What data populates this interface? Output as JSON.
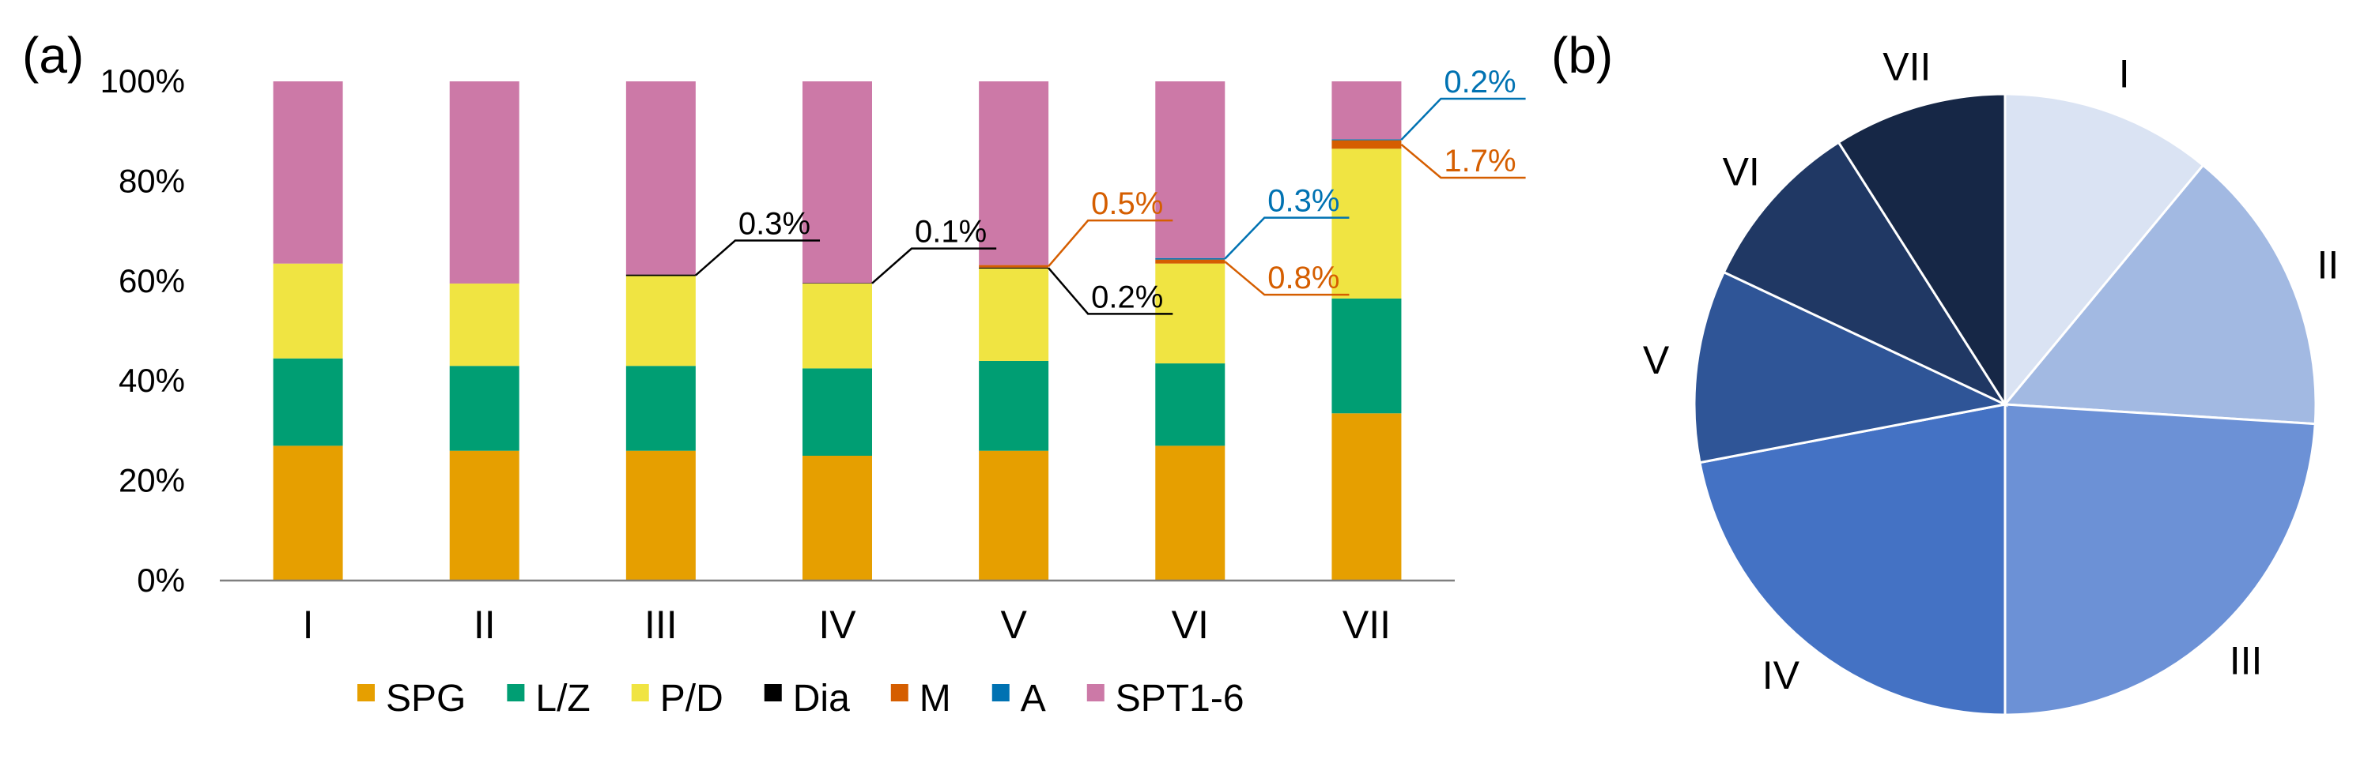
{
  "chart_data": [
    {
      "panel": "(a)",
      "type": "bar",
      "stacked": true,
      "categories": [
        "I",
        "II",
        "III",
        "IV",
        "V",
        "VI",
        "VII"
      ],
      "ylim": [
        0,
        100
      ],
      "yticks": [
        "0%",
        "20%",
        "40%",
        "60%",
        "80%",
        "100%"
      ],
      "legend_position": "bottom",
      "grid": false,
      "series": [
        {
          "name": "SPG",
          "color": "#E69F00",
          "values": [
            27,
            26,
            26,
            25,
            26,
            27,
            33.5
          ]
        },
        {
          "name": "L/Z",
          "color": "#009E73",
          "values": [
            17.5,
            17,
            17,
            17.5,
            18,
            16.5,
            23
          ]
        },
        {
          "name": "P/D",
          "color": "#F0E442",
          "values": [
            19,
            16.5,
            18,
            17,
            18.5,
            20,
            30
          ]
        },
        {
          "name": "Dia",
          "color": "#000000",
          "values": [
            0,
            0,
            0.3,
            0.1,
            0.2,
            0,
            0
          ]
        },
        {
          "name": "M",
          "color": "#D55E00",
          "values": [
            0,
            0,
            0,
            0,
            0.5,
            0.8,
            1.7
          ]
        },
        {
          "name": "A",
          "color": "#0072B2",
          "values": [
            0,
            0,
            0,
            0,
            0,
            0.3,
            0.2
          ]
        },
        {
          "name": "SPT1-6",
          "color": "#CC79A7",
          "values": [
            36.5,
            40.5,
            38.7,
            40.4,
            36.8,
            35.4,
            11.6
          ]
        }
      ],
      "annotations": [
        {
          "category": "III",
          "series": "Dia",
          "text": "0.3%",
          "color": "#000000"
        },
        {
          "category": "IV",
          "series": "Dia",
          "text": "0.1%",
          "color": "#000000"
        },
        {
          "category": "V",
          "series": "M",
          "text": "0.5%",
          "color": "#D55E00"
        },
        {
          "category": "V",
          "series": "Dia",
          "text": "0.2%",
          "color": "#000000"
        },
        {
          "category": "VI",
          "series": "A",
          "text": "0.3%",
          "color": "#0072B2"
        },
        {
          "category": "VI",
          "series": "M",
          "text": "0.8%",
          "color": "#D55E00"
        },
        {
          "category": "VII",
          "series": "A",
          "text": "0.2%",
          "color": "#0072B2"
        },
        {
          "category": "VII",
          "series": "M",
          "text": "1.7%",
          "color": "#D55E00"
        }
      ]
    },
    {
      "panel": "(b)",
      "type": "pie",
      "labels": [
        "I",
        "II",
        "III",
        "IV",
        "V",
        "VI",
        "VII"
      ],
      "values": [
        11,
        15,
        24,
        22,
        10,
        9,
        9
      ],
      "colors": [
        "#DAE3F3",
        "#A2B9E2",
        "#6C91D6",
        "#4472C4",
        "#2F5597",
        "#203864",
        "#162746"
      ],
      "start_angle_deg": 0,
      "direction": "clockwise"
    }
  ]
}
